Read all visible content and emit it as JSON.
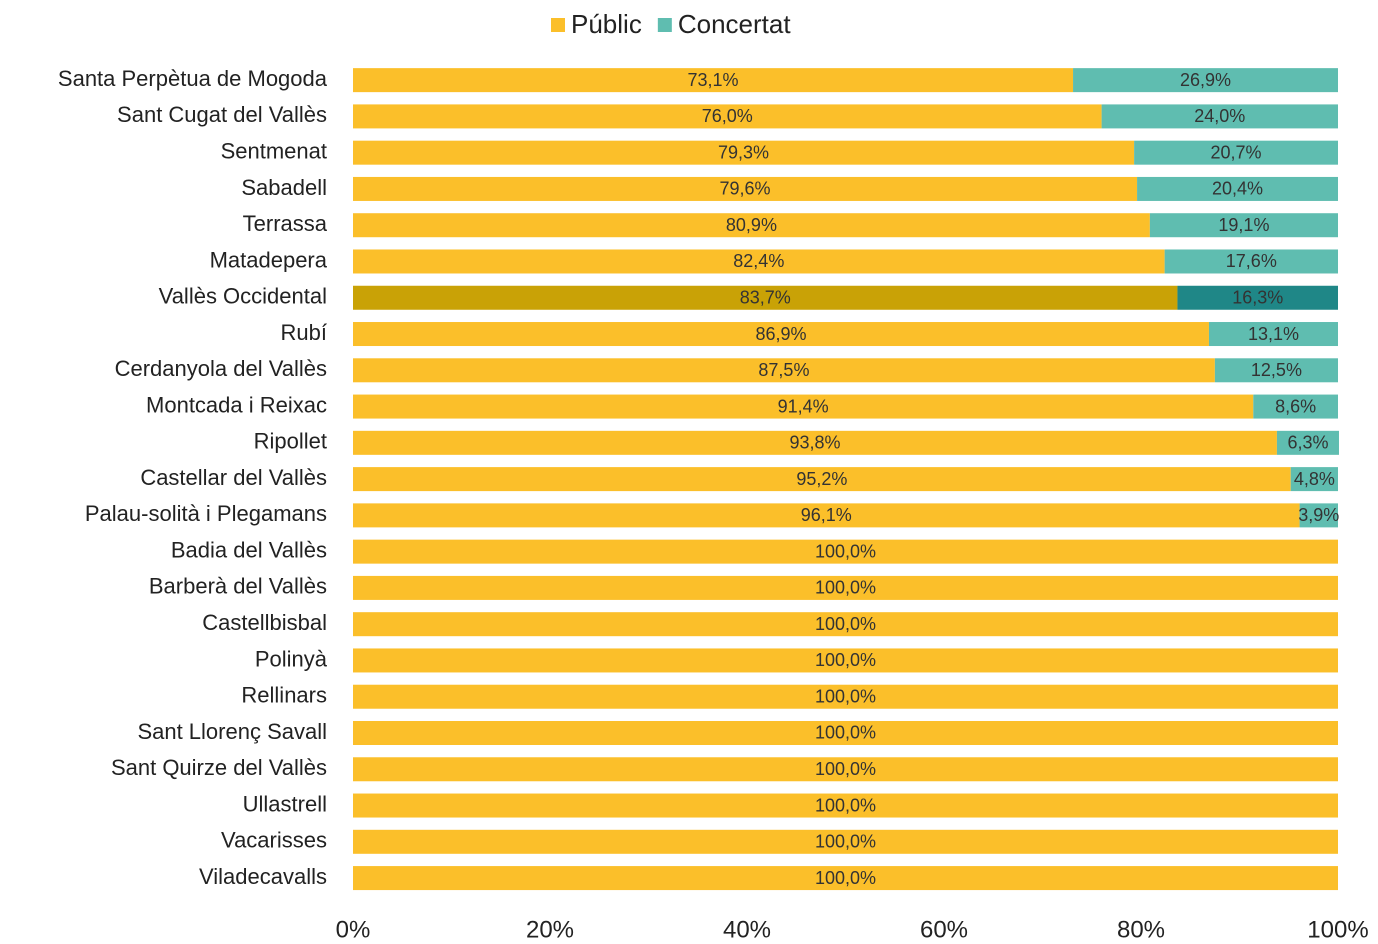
{
  "chart_data": {
    "type": "stacked-barh",
    "categories": [
      "Santa Perpètua de Mogoda",
      "Sant Cugat del Vallès",
      "Sentmenat",
      "Sabadell",
      "Terrassa",
      "Matadepera",
      "Vallès Occidental",
      "Rubí",
      "Cerdanyola del Vallès",
      "Montcada i Reixac",
      "Ripollet",
      "Castellar del Vallès",
      "Palau-solità i Plegamans",
      "Badia del Vallès",
      "Barberà del Vallès",
      "Castellbisbal",
      "Polinyà",
      "Rellinars",
      "Sant Llorenç Savall",
      "Sant Quirze del Vallès",
      "Ullastrell",
      "Vacarisses",
      "Viladecavalls"
    ],
    "series": [
      {
        "name": "Públic",
        "color": "#fbbf2a",
        "highlight_color": "#c9a206",
        "values": [
          73.1,
          76.0,
          79.3,
          79.6,
          80.9,
          82.4,
          83.7,
          86.9,
          87.5,
          91.4,
          93.8,
          95.2,
          96.1,
          100,
          100,
          100,
          100,
          100,
          100,
          100,
          100,
          100,
          100
        ],
        "value_labels": [
          "73,1%",
          "76,0%",
          "79,3%",
          "79,6%",
          "80,9%",
          "82,4%",
          "83,7%",
          "86,9%",
          "87,5%",
          "91,4%",
          "93,8%",
          "95,2%",
          "96,1%",
          "100,0%",
          "100,0%",
          "100,0%",
          "100,0%",
          "100,0%",
          "100,0%",
          "100,0%",
          "100,0%",
          "100,0%",
          "100,0%"
        ]
      },
      {
        "name": "Concertat",
        "color": "#5fbdb0",
        "highlight_color": "#1f8787",
        "values": [
          26.9,
          24.0,
          20.7,
          20.4,
          19.1,
          17.6,
          16.3,
          13.1,
          12.5,
          8.6,
          6.3,
          4.8,
          3.9,
          0,
          0,
          0,
          0,
          0,
          0,
          0,
          0,
          0,
          0
        ],
        "value_labels": [
          "26,9%",
          "24,0%",
          "20,7%",
          "20,4%",
          "19,1%",
          "17,6%",
          "16,3%",
          "13,1%",
          "12,5%",
          "8,6%",
          "6,3%",
          "4,8%",
          "3,9%",
          null,
          null,
          null,
          null,
          null,
          null,
          null,
          null,
          null,
          null
        ]
      }
    ],
    "highlight_category": 6,
    "xlim": [
      0,
      100
    ],
    "xticks": [
      {
        "value": 0,
        "label": "0%"
      },
      {
        "value": 20,
        "label": "20%"
      },
      {
        "value": 40,
        "label": "40%"
      },
      {
        "value": 60,
        "label": "60%"
      },
      {
        "value": 80,
        "label": "80%"
      },
      {
        "value": 100,
        "label": "100%"
      }
    ],
    "legend": "top"
  }
}
